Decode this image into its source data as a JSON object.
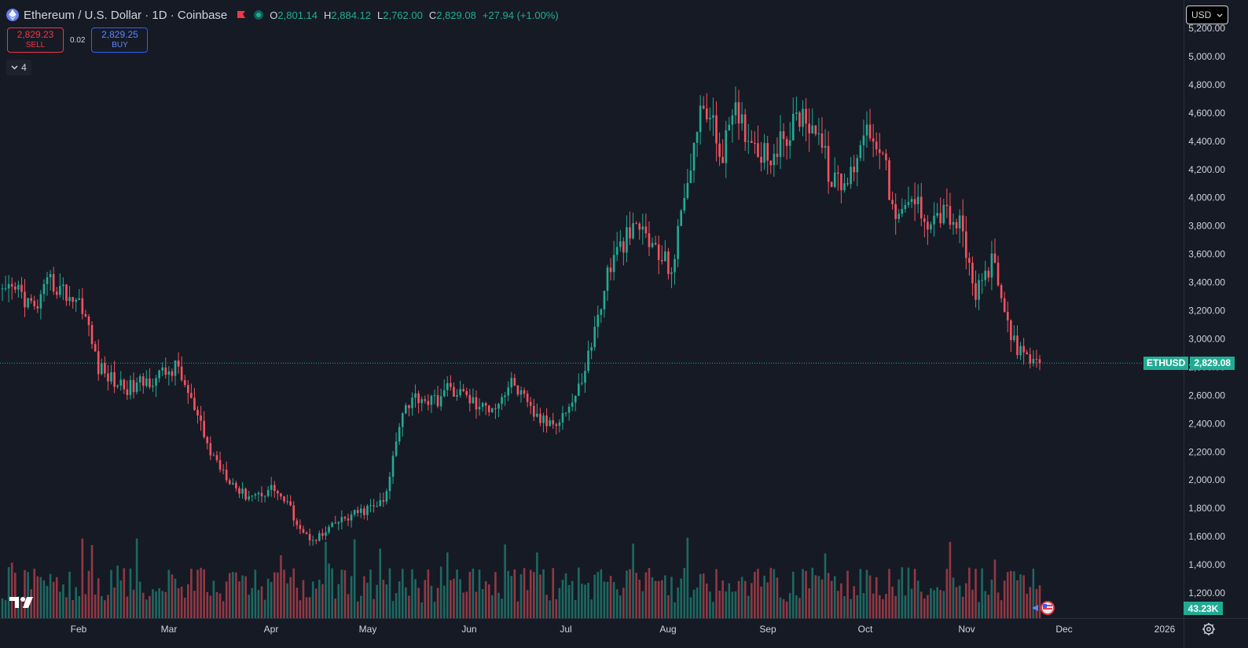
{
  "header": {
    "symbol_title": "Ethereum / U.S. Dollar · 1D · Coinbase",
    "ohlc": {
      "o_key": "O",
      "o_val": "2,801.14",
      "h_key": "H",
      "h_val": "2,884.12",
      "l_key": "L",
      "l_val": "2,762.00",
      "c_key": "C",
      "c_val": "2,829.08",
      "change": "+27.94 (+1.00%)"
    }
  },
  "trade": {
    "sell_price": "2,829.23",
    "sell_label": "SELL",
    "spread": "0.02",
    "buy_price": "2,829.25",
    "buy_label": "BUY"
  },
  "indicators_toggle": {
    "icon": "chevron-down-icon",
    "count": "4"
  },
  "currency_select": {
    "value": "USD"
  },
  "price_axis": {
    "ticks": [
      "5,200.00",
      "5,000.00",
      "4,800.00",
      "4,600.00",
      "4,400.00",
      "4,200.00",
      "4,000.00",
      "3,800.00",
      "3,600.00",
      "3,400.00",
      "3,200.00",
      "3,000.00",
      "2,800.00",
      "2,600.00",
      "2,400.00",
      "2,200.00",
      "2,000.00",
      "1,800.00",
      "1,600.00",
      "1,400.00",
      "1,200.00"
    ]
  },
  "last_price": {
    "symbol": "ETHUSD",
    "value": "2,829.08"
  },
  "volume_label": "43.23K",
  "time_axis": {
    "labels": [
      "Feb",
      "Mar",
      "Apr",
      "May",
      "Jun",
      "Jul",
      "Aug",
      "Sep",
      "Oct",
      "Nov",
      "Dec",
      "2026"
    ]
  },
  "colors": {
    "up": "#22ab94",
    "down": "#f7525f",
    "background": "#161a25",
    "grid_text": "#d1d4dc"
  },
  "chart_data": {
    "type": "candlestick",
    "title": "Ethereum / U.S. Dollar · 1D · Coinbase",
    "y_range": [
      1100,
      5200
    ],
    "x_labels": [
      "Feb",
      "Mar",
      "Apr",
      "May",
      "Jun",
      "Jul",
      "Aug",
      "Sep",
      "Oct",
      "Nov",
      "Dec",
      "2026"
    ],
    "close_path": [
      [
        "Jan",
        3300
      ],
      [
        "Jan",
        3350
      ],
      [
        "Jan",
        3200
      ],
      [
        "Jan",
        3400
      ],
      [
        "Jan",
        3320
      ],
      [
        "Jan",
        3250
      ],
      [
        "Feb",
        2800
      ],
      [
        "Feb",
        2700
      ],
      [
        "Feb",
        2650
      ],
      [
        "Feb",
        2700
      ],
      [
        "Feb",
        2750
      ],
      [
        "Feb",
        2800
      ],
      [
        "Mar",
        2500
      ],
      [
        "Mar",
        2200
      ],
      [
        "Mar",
        2050
      ],
      [
        "Mar",
        1900
      ],
      [
        "Mar",
        1900
      ],
      [
        "Mar",
        1950
      ],
      [
        "Apr",
        1800
      ],
      [
        "Apr",
        1600
      ],
      [
        "Apr",
        1600
      ],
      [
        "Apr",
        1700
      ],
      [
        "Apr",
        1750
      ],
      [
        "Apr",
        1800
      ],
      [
        "May",
        1850
      ],
      [
        "May",
        2500
      ],
      [
        "May",
        2600
      ],
      [
        "May",
        2550
      ],
      [
        "May",
        2650
      ],
      [
        "May",
        2600
      ],
      [
        "Jun",
        2500
      ],
      [
        "Jun",
        2550
      ],
      [
        "Jun",
        2700
      ],
      [
        "Jun",
        2500
      ],
      [
        "Jun",
        2400
      ],
      [
        "Jun",
        2450
      ],
      [
        "Jul",
        2600
      ],
      [
        "Jul",
        3000
      ],
      [
        "Jul",
        3500
      ],
      [
        "Jul",
        3700
      ],
      [
        "Jul",
        3800
      ],
      [
        "Jul",
        3600
      ],
      [
        "Aug",
        3500
      ],
      [
        "Aug",
        4200
      ],
      [
        "Aug",
        4700
      ],
      [
        "Aug",
        4300
      ],
      [
        "Aug",
        4600
      ],
      [
        "Aug",
        4400
      ],
      [
        "Sep",
        4300
      ],
      [
        "Sep",
        4400
      ],
      [
        "Sep",
        4600
      ],
      [
        "Sep",
        4500
      ],
      [
        "Sep",
        4100
      ],
      [
        "Sep",
        4100
      ],
      [
        "Oct",
        4500
      ],
      [
        "Oct",
        4400
      ],
      [
        "Oct",
        3800
      ],
      [
        "Oct",
        4000
      ],
      [
        "Oct",
        3850
      ],
      [
        "Oct",
        3900
      ],
      [
        "Nov",
        3800
      ],
      [
        "Nov",
        3300
      ],
      [
        "Nov",
        3550
      ],
      [
        "Nov",
        3100
      ],
      [
        "Nov",
        2850
      ],
      [
        "Nov",
        2829.08
      ]
    ],
    "last_close": 2829.08,
    "last_volume": "43.23K"
  }
}
